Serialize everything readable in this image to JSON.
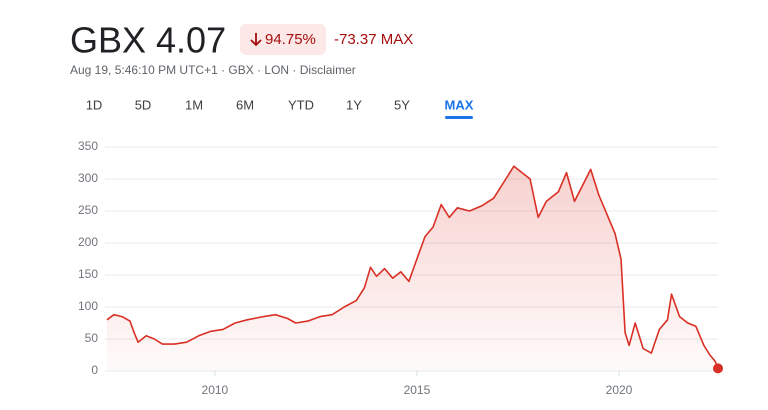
{
  "header": {
    "price": "GBX 4.07",
    "change_percent": "94.75%",
    "change": "-73.37 MAX",
    "subtitle": "Aug 19, 5:46:10 PM UTC+1 · GBX · LON · Disclaimer"
  },
  "range_tabs": [
    "1D",
    "5D",
    "1M",
    "6M",
    "YTD",
    "1Y",
    "5Y",
    "MAX"
  ],
  "selected_tab": 7,
  "chart_data": {
    "type": "line",
    "color": "#d93025",
    "x": [
      2007.33,
      2007.5,
      2007.7,
      2007.9,
      2008.0,
      2008.1,
      2008.3,
      2008.5,
      2008.7,
      2009.0,
      2009.3,
      2009.6,
      2009.9,
      2010.2,
      2010.5,
      2010.8,
      2011.2,
      2011.5,
      2011.8,
      2012.0,
      2012.3,
      2012.6,
      2012.9,
      2013.2,
      2013.5,
      2013.7,
      2013.85,
      2014.0,
      2014.2,
      2014.4,
      2014.6,
      2014.8,
      2015.0,
      2015.2,
      2015.4,
      2015.6,
      2015.8,
      2016.0,
      2016.3,
      2016.6,
      2016.9,
      2017.2,
      2017.4,
      2017.6,
      2017.8,
      2018.0,
      2018.2,
      2018.5,
      2018.7,
      2018.9,
      2019.1,
      2019.3,
      2019.5,
      2019.7,
      2019.9,
      2020.05,
      2020.15,
      2020.25,
      2020.4,
      2020.6,
      2020.8,
      2021.0,
      2021.2,
      2021.3,
      2021.5,
      2021.7,
      2021.9,
      2022.1,
      2022.25,
      2022.38,
      2022.45
    ],
    "values": [
      80,
      88,
      85,
      78,
      60,
      45,
      55,
      50,
      42,
      42,
      45,
      55,
      62,
      65,
      75,
      80,
      85,
      88,
      82,
      75,
      78,
      85,
      88,
      100,
      110,
      130,
      162,
      148,
      160,
      145,
      155,
      140,
      175,
      210,
      225,
      260,
      240,
      255,
      250,
      258,
      270,
      300,
      320,
      310,
      300,
      240,
      265,
      280,
      310,
      265,
      290,
      315,
      275,
      245,
      215,
      175,
      60,
      40,
      75,
      35,
      28,
      65,
      80,
      120,
      85,
      75,
      70,
      40,
      25,
      15,
      4.07
    ],
    "xlim": [
      2007.33,
      2022.45
    ],
    "xticks": [
      2010,
      2015,
      2020
    ],
    "ylim": [
      0,
      350
    ],
    "yticks": [
      0,
      50,
      100,
      150,
      200,
      250,
      300,
      350
    ],
    "grid": true
  }
}
